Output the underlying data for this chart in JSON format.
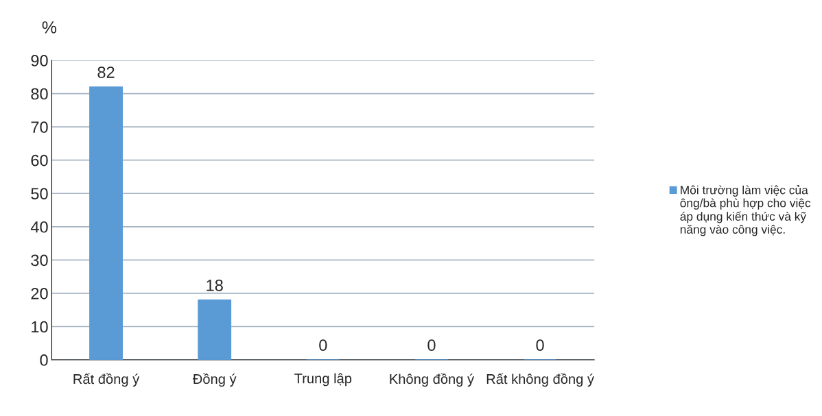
{
  "chart_data": {
    "type": "bar",
    "ylabel": "%",
    "categories": [
      "Rất đồng ý",
      "Đồng ý",
      "Trung lập",
      "Không đồng ý",
      "Rất không đồng ý"
    ],
    "series": [
      {
        "name": "Môi trường làm việc của ông/bà phù hợp cho việc áp dụng kiến thức và kỹ năng vào công việc.",
        "color": "#5b9bd5",
        "values": [
          82,
          18,
          0,
          0,
          0
        ]
      }
    ],
    "ylim": [
      0,
      90
    ],
    "yticks": [
      0,
      10,
      20,
      30,
      40,
      50,
      60,
      70,
      80,
      90
    ],
    "grid": "y",
    "legend": "right",
    "data_labels": true
  }
}
